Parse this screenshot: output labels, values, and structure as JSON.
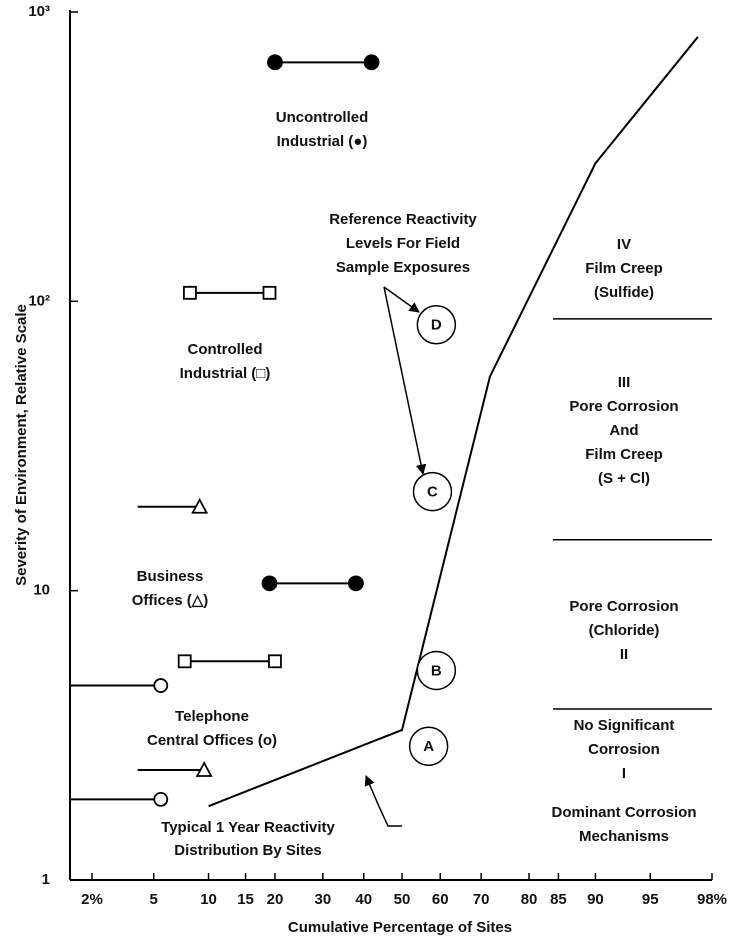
{
  "chart_data": {
    "type": "line",
    "xscale": "probit",
    "yscale": "log",
    "xlabel": "Cumulative Percentage of Sites",
    "ylabel": "Severity of Environment, Relative Scale",
    "xlim": [
      2,
      98
    ],
    "ylim": [
      1,
      1000
    ],
    "xticks": [
      {
        "value": 2,
        "label": "2%"
      },
      5,
      10,
      15,
      20,
      30,
      40,
      50,
      60,
      70,
      80,
      85,
      90,
      95,
      {
        "value": 98,
        "label": "98%"
      }
    ],
    "yticks": [
      1,
      10,
      {
        "value": 100,
        "label": "10²"
      },
      {
        "value": 1000,
        "label": "10³"
      }
    ],
    "series": [
      {
        "name_lines": [
          "Typical 1 Year Reactivity",
          "Distribution By Sites"
        ],
        "color": "#000000",
        "x": [
          10,
          50,
          72,
          90,
          97.5
        ],
        "values": [
          1.8,
          3.3,
          55,
          300,
          820
        ]
      }
    ],
    "ranges": [
      {
        "x": [
          20,
          42
        ],
        "y": 670,
        "markers": [
          "filled-circle",
          "filled-circle"
        ]
      },
      {
        "x": [
          8,
          19
        ],
        "y": 107,
        "markers": [
          "square",
          "square"
        ]
      },
      {
        "x": [
          4,
          9
        ],
        "y": 19.5,
        "markers": [
          null,
          "triangle"
        ]
      },
      {
        "x": [
          19,
          38
        ],
        "y": 10.6,
        "markers": [
          "filled-circle",
          "filled-circle"
        ]
      },
      {
        "x": [
          7.5,
          20
        ],
        "y": 5.7,
        "markers": [
          "square",
          "square"
        ]
      },
      {
        "x": [
          2,
          5.5
        ],
        "y": 4.7,
        "markers": [
          null,
          "circle"
        ]
      },
      {
        "x": [
          4,
          9.5
        ],
        "y": 2.4,
        "markers": [
          null,
          "triangle"
        ]
      },
      {
        "x": [
          2,
          5.5
        ],
        "y": 1.9,
        "markers": [
          null,
          "circle"
        ]
      }
    ],
    "group_labels": [
      {
        "lines": [
          "Uncontrolled",
          "Industrial (●)"
        ]
      },
      {
        "lines": [
          "Controlled",
          "Industrial (□)"
        ]
      },
      {
        "lines": [
          "Business",
          "Offices (△)"
        ]
      },
      {
        "lines": [
          "Telephone",
          "Central Offices (o)"
        ]
      }
    ],
    "reference_title": [
      "Reference Reactivity",
      "Levels For Field",
      "Sample Exposures"
    ],
    "reference_levels": [
      {
        "label": "A",
        "x": 57,
        "y": 2.9
      },
      {
        "label": "B",
        "x": 59,
        "y": 5.3
      },
      {
        "label": "C",
        "x": 58,
        "y": 22
      },
      {
        "label": "D",
        "x": 59,
        "y": 83
      }
    ],
    "regions": [
      {
        "lines": [
          "IV",
          "Film Creep",
          "(Sulfide)"
        ]
      },
      {
        "lines": [
          "III",
          "Pore Corrosion",
          "And",
          "Film Creep",
          "(S + Cl)"
        ]
      },
      {
        "lines": [
          "Pore Corrosion",
          "(Chloride)",
          "II"
        ]
      },
      {
        "lines": [
          "No Significant",
          "Corrosion",
          "I"
        ]
      },
      {
        "lines": [
          "Dominant Corrosion",
          "Mechanisms"
        ]
      }
    ],
    "region_boundaries": [
      87,
      15,
      3.9
    ]
  }
}
